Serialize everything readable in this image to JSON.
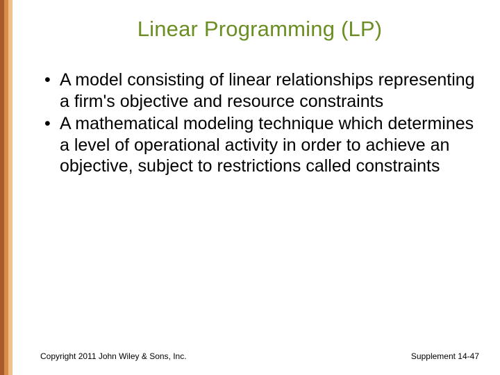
{
  "title": "Linear Programming (LP)",
  "bullets": [
    "A model consisting of linear relationships representing a firm's objective and resource constraints",
    "A mathematical modeling technique which determines a level of operational activity in order to achieve an objective, subject to restrictions called constraints"
  ],
  "footer": {
    "copyright": "Copyright 2011 John Wiley & Sons, Inc.",
    "page_ref": "Supplement 14-47"
  },
  "colors": {
    "title_color": "#6b8e23",
    "border_stripe_1": "#a85a2a",
    "border_stripe_2": "#d98c4a",
    "border_stripe_3": "#f2c08a",
    "background": "#ffffff",
    "text": "#000000"
  },
  "typography": {
    "title_fontsize": 31,
    "body_fontsize": 25,
    "footer_fontsize": 12,
    "font_family": "Arial"
  }
}
